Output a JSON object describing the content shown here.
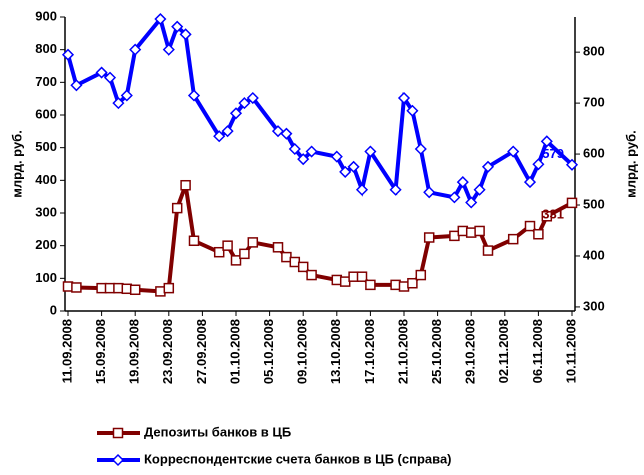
{
  "chart_data": {
    "type": "line",
    "x": [
      "11.09.2008",
      "12.09.2008",
      "15.09.2008",
      "16.09.2008",
      "17.09.2008",
      "18.09.2008",
      "19.09.2008",
      "22.09.2008",
      "23.09.2008",
      "24.09.2008",
      "25.09.2008",
      "26.09.2008",
      "29.09.2008",
      "30.09.2008",
      "01.10.2008",
      "02.10.2008",
      "03.10.2008",
      "06.10.2008",
      "07.10.2008",
      "08.10.2008",
      "09.10.2008",
      "10.10.2008",
      "13.10.2008",
      "14.10.2008",
      "15.10.2008",
      "16.10.2008",
      "17.10.2008",
      "20.10.2008",
      "21.10.2008",
      "22.10.2008",
      "23.10.2008",
      "24.10.2008",
      "27.10.2008",
      "28.10.2008",
      "29.10.2008",
      "30.10.2008",
      "31.10.2008",
      "03.11.2008",
      "05.11.2008",
      "06.11.2008",
      "07.11.2008",
      "10.11.2008"
    ],
    "xlim": [
      "11.09.2008",
      "10.11.2008"
    ],
    "xticks": [
      "11.09.2008",
      "15.09.2008",
      "19.09.2008",
      "23.09.2008",
      "27.09.2008",
      "01.10.2008",
      "05.10.2008",
      "09.10.2008",
      "13.10.2008",
      "17.10.2008",
      "21.10.2008",
      "25.10.2008",
      "29.10.2008",
      "02.11.2008",
      "06.11.2008",
      "10.11.2008"
    ],
    "ylabel": "млрд. руб.",
    "y2label": "млрд. руб.",
    "ylim": [
      0,
      900
    ],
    "yticks": [
      0,
      100,
      200,
      300,
      400,
      500,
      600,
      700,
      800,
      900
    ],
    "y2lim": [
      292,
      869
    ],
    "y2ticks": [
      300,
      400,
      500,
      600,
      700,
      800
    ],
    "grid": false,
    "legend": "bottom",
    "series": [
      {
        "name": "Депозиты банков в ЦБ",
        "color": "#800000",
        "marker": "square",
        "values": [
          75,
          72,
          70,
          70,
          70,
          68,
          65,
          60,
          70,
          315,
          385,
          215,
          180,
          200,
          155,
          175,
          210,
          195,
          165,
          150,
          135,
          110,
          95,
          90,
          105,
          105,
          80,
          80,
          75,
          85,
          110,
          225,
          230,
          245,
          240,
          245,
          185,
          220,
          260,
          235,
          290,
          331
        ]
      },
      {
        "name": "Корреспондентские счета банков в ЦБ (справа)",
        "color": "#0000ff",
        "marker": "diamond",
        "axis": "y2",
        "values": [
          795,
          735,
          760,
          750,
          700,
          715,
          805,
          865,
          805,
          850,
          835,
          715,
          635,
          645,
          680,
          700,
          710,
          645,
          640,
          610,
          590,
          605,
          595,
          565,
          575,
          530,
          605,
          530,
          710,
          685,
          610,
          525,
          515,
          545,
          505,
          530,
          575,
          605,
          545,
          580,
          625,
          579
        ]
      }
    ]
  }
}
